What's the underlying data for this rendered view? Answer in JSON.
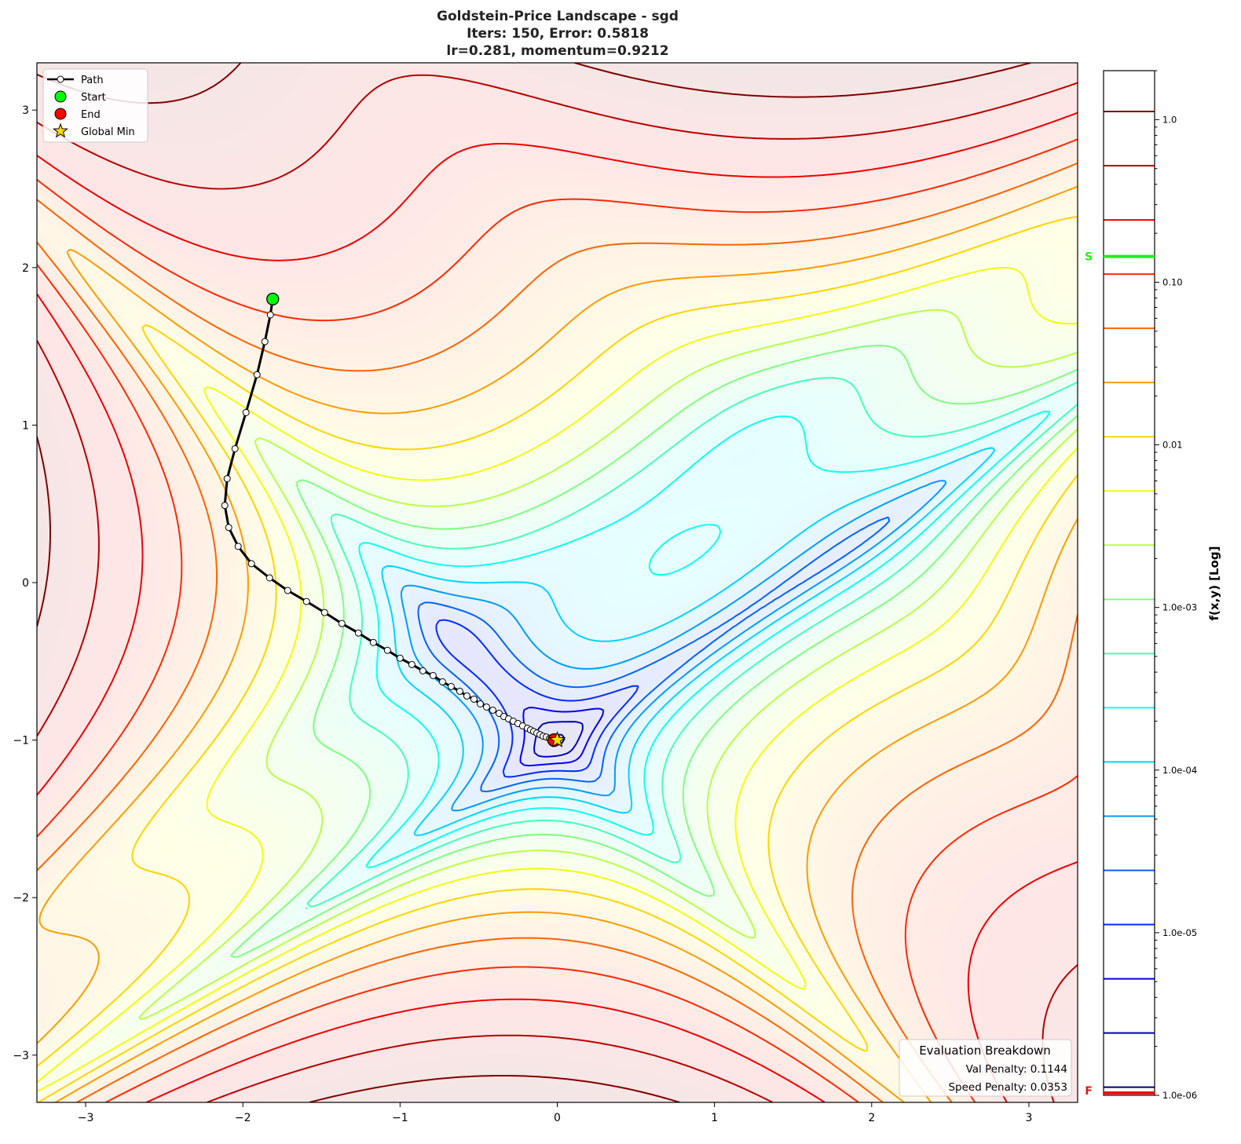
{
  "chart_data": {
    "type": "contour",
    "title_lines": [
      "Goldstein-Price Landscape - sgd",
      "Iters: 150, Error: 0.5818",
      "lr=0.281, momentum=0.9212"
    ],
    "xlim": [
      -3.31,
      3.31
    ],
    "ylim": [
      -3.3,
      3.3
    ],
    "x_ticks": [
      "−3",
      "−2",
      "−1",
      "0",
      "1",
      "2",
      "3"
    ],
    "y_ticks": [
      "−3",
      "−2",
      "−1",
      "0",
      "1",
      "2",
      "3"
    ],
    "x_tick_values": [
      -3,
      -2,
      -1,
      0,
      1,
      2,
      3
    ],
    "y_tick_values": [
      -3,
      -2,
      -1,
      0,
      1,
      2,
      3
    ],
    "colormap": "jet",
    "path": {
      "name": "Path",
      "color": "#000000",
      "x": [
        -1.81,
        -1.825,
        -1.86,
        -1.91,
        -1.98,
        -2.05,
        -2.1,
        -2.115,
        -2.09,
        -2.03,
        -1.945,
        -1.83,
        -1.715,
        -1.595,
        -1.48,
        -1.37,
        -1.265,
        -1.17,
        -1.08,
        -1.0,
        -0.925,
        -0.855,
        -0.79,
        -0.73,
        -0.675,
        -0.62,
        -0.575,
        -0.53,
        -0.49,
        -0.45,
        -0.41,
        -0.37,
        -0.34,
        -0.31,
        -0.28,
        -0.25,
        -0.22,
        -0.19,
        -0.17,
        -0.15,
        -0.13,
        -0.11,
        -0.09,
        -0.07,
        -0.05,
        -0.03,
        -0.02
      ],
      "y": [
        1.8,
        1.7,
        1.53,
        1.32,
        1.08,
        0.85,
        0.66,
        0.49,
        0.35,
        0.23,
        0.12,
        0.03,
        -0.05,
        -0.12,
        -0.19,
        -0.26,
        -0.32,
        -0.38,
        -0.43,
        -0.48,
        -0.52,
        -0.56,
        -0.59,
        -0.63,
        -0.66,
        -0.69,
        -0.72,
        -0.74,
        -0.77,
        -0.79,
        -0.81,
        -0.83,
        -0.85,
        -0.865,
        -0.88,
        -0.895,
        -0.91,
        -0.925,
        -0.935,
        -0.945,
        -0.955,
        -0.965,
        -0.975,
        -0.98,
        -0.99,
        -0.995,
        -1.0
      ]
    },
    "start": {
      "name": "Start",
      "x": -1.81,
      "y": 1.8,
      "color": "#00ff00"
    },
    "end": {
      "name": "End",
      "x": -0.02,
      "y": -1.0,
      "color": "#ff0000"
    },
    "global_min": {
      "name": "Global Min",
      "x": 0,
      "y": -1,
      "color": "#ffd700"
    },
    "legend": {
      "placement": "top-left",
      "entries": [
        "Path",
        "Start",
        "End",
        "Global Min"
      ]
    },
    "colorbar": {
      "label": "f(x,y) [Log]",
      "scale": "log",
      "range": [
        1e-06,
        2.0
      ],
      "tick_labels": [
        "1.0",
        "0.10",
        "0.01",
        "1.0e-03",
        "1.0e-04",
        "1.0e-05",
        "1.0e-06"
      ],
      "tick_values": [
        1,
        0.1,
        0.01,
        0.001,
        0.0001,
        1e-05,
        1e-06
      ],
      "start_marker": {
        "label": "S",
        "value": 0.144,
        "color": "#22ee22"
      },
      "end_marker": {
        "label": "F",
        "value": 1e-06,
        "color": "#ee1111"
      }
    },
    "annotation": {
      "title": "Evaluation Breakdown",
      "lines": [
        "Val Penalty: 0.1144",
        "Speed Penalty: 0.0353"
      ],
      "placement": "bottom-right"
    }
  }
}
